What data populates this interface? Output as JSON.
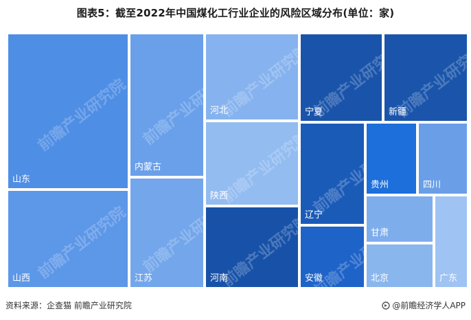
{
  "title": "图表5：截至2022年中国煤化工行业企业的风险区域分布(单位：家)",
  "watermark": "前瞻产业研究院",
  "footer": {
    "source": "资料来源：企查猫 前瞻产业研究院",
    "brand": "@前瞻经济学人APP"
  },
  "colors": {
    "light": "#86b3ef",
    "medium": "#5593e6",
    "bright": "#1d6fdb",
    "dark": "#1852a8"
  },
  "chart_data": {
    "type": "treemap",
    "title": "图表5：截至2022年中国煤化工行业企业的风险区域分布(单位：家)",
    "unit": "家",
    "items": [
      {
        "name": "山东",
        "value": 310,
        "color": "#4f8ee5"
      },
      {
        "name": "山西",
        "value": 245,
        "color": "#5d97e8"
      },
      {
        "name": "内蒙古",
        "value": 200,
        "color": "#6aa0ea"
      },
      {
        "name": "江苏",
        "value": 160,
        "color": "#73a6eb"
      },
      {
        "name": "河北",
        "value": 125,
        "color": "#86b3ef"
      },
      {
        "name": "陕西",
        "value": 125,
        "color": "#93bcf1"
      },
      {
        "name": "河南",
        "value": 120,
        "color": "#1852a8"
      },
      {
        "name": "宁夏",
        "value": 100,
        "color": "#1a54aa"
      },
      {
        "name": "新疆",
        "value": 95,
        "color": "#1a55ab"
      },
      {
        "name": "辽宁",
        "value": 80,
        "color": "#1b5bb8"
      },
      {
        "name": "安徽",
        "value": 60,
        "color": "#1e63c8"
      },
      {
        "name": "贵州",
        "value": 55,
        "color": "#1d6fdb"
      },
      {
        "name": "四川",
        "value": 45,
        "color": "#6a9fe8"
      },
      {
        "name": "甘肃",
        "value": 40,
        "color": "#7eadec"
      },
      {
        "name": "北京",
        "value": 45,
        "color": "#8ab6ee"
      },
      {
        "name": "广东",
        "value": 30,
        "color": "#9fc3f2"
      }
    ]
  }
}
